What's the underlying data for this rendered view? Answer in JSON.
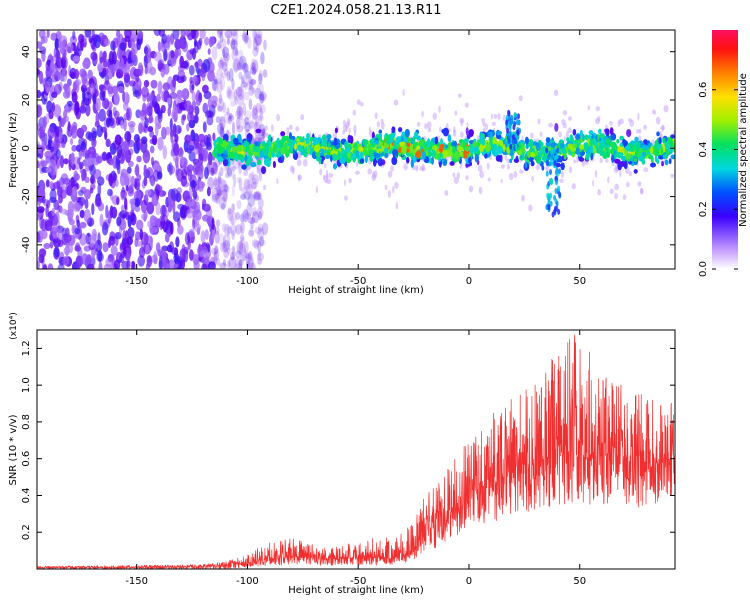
{
  "chart_data": [
    {
      "type": "heatmap",
      "title": "C2E1.2024.058.21.13.R11",
      "xlabel": "Height of straight line (km)",
      "ylabel": "Frequency (Hz)",
      "xlim": [
        -195,
        93
      ],
      "ylim": [
        -50,
        49
      ],
      "x_ticks": [
        -150,
        -100,
        -50,
        0,
        50
      ],
      "y_ticks": [
        -40,
        -20,
        0,
        20,
        40
      ],
      "colorbar": {
        "label": "Normalized spectral amplitude",
        "range": [
          0,
          0.8
        ],
        "ticks": [
          0.0,
          0.2,
          0.4,
          0.6
        ]
      },
      "signal_band": {
        "x_start": -115,
        "center_frequency": 0,
        "half_width": 8,
        "noise_region_end": -100,
        "features": [
          {
            "x": 20,
            "frequency": 15
          },
          {
            "x": 38,
            "frequency": -28
          }
        ]
      }
    },
    {
      "type": "line",
      "xlabel": "Height of straight line (km)",
      "ylabel": "SNR (10 * v/v)",
      "y_multiplier": "(x10⁴)",
      "xlim": [
        -195,
        93
      ],
      "ylim": [
        0,
        1.3
      ],
      "x_ticks": [
        -150,
        -100,
        -50,
        0,
        50
      ],
      "y_ticks": [
        0.2,
        0.4,
        0.6,
        0.8,
        1.0,
        1.2
      ],
      "series": [
        {
          "color": "#f03030",
          "x": [
            -195,
            -150,
            -120,
            -110,
            -100,
            -90,
            -80,
            -70,
            -60,
            -50,
            -40,
            -30,
            -25,
            -20,
            -10,
            0,
            10,
            20,
            30,
            40,
            50,
            60,
            70,
            80,
            93
          ],
          "envelope_low": [
            0.0,
            0.0,
            0.0,
            0.0,
            0.01,
            0.02,
            0.02,
            0.02,
            0.02,
            0.02,
            0.02,
            0.03,
            0.04,
            0.08,
            0.15,
            0.22,
            0.25,
            0.3,
            0.32,
            0.35,
            0.35,
            0.35,
            0.33,
            0.33,
            0.4
          ],
          "envelope_base": [
            0.01,
            0.01,
            0.015,
            0.02,
            0.03,
            0.06,
            0.07,
            0.06,
            0.06,
            0.06,
            0.06,
            0.07,
            0.1,
            0.2,
            0.3,
            0.4,
            0.48,
            0.55,
            0.58,
            0.62,
            0.62,
            0.62,
            0.6,
            0.58,
            0.6
          ],
          "envelope_high": [
            0.015,
            0.02,
            0.025,
            0.04,
            0.08,
            0.15,
            0.17,
            0.13,
            0.12,
            0.15,
            0.18,
            0.2,
            0.26,
            0.4,
            0.55,
            0.7,
            0.85,
            0.95,
            1.05,
            1.2,
            1.3,
            1.05,
            1.0,
            0.95,
            0.9
          ]
        }
      ]
    }
  ]
}
